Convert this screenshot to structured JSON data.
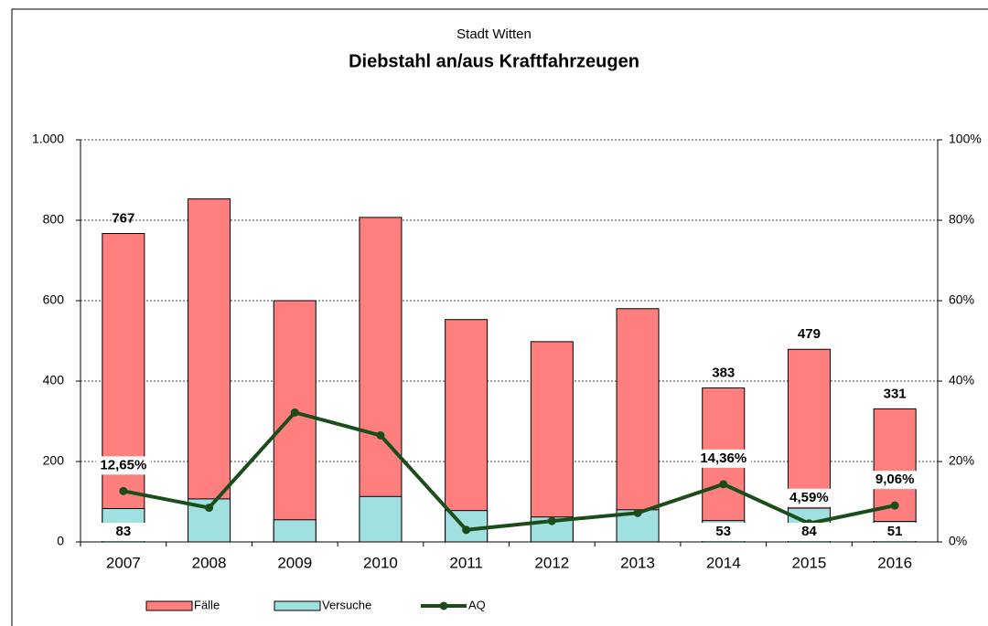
{
  "chart_data": {
    "type": "bar",
    "subtitle": "Stadt Witten",
    "title": "Diebstahl an/aus Kraftfahrzeugen",
    "categories": [
      "2007",
      "2008",
      "2009",
      "2010",
      "2011",
      "2012",
      "2013",
      "2014",
      "2015",
      "2016"
    ],
    "series": [
      {
        "name": "Fälle",
        "color": "#ff7f7f",
        "values": [
          767,
          853,
          600,
          807,
          553,
          498,
          580,
          383,
          479,
          331
        ],
        "value_labels": [
          "767",
          null,
          null,
          null,
          null,
          null,
          null,
          "383",
          "479",
          "331"
        ]
      },
      {
        "name": "Versuche",
        "color": "#a0e0e0",
        "values": [
          83,
          107,
          55,
          113,
          78,
          62,
          80,
          53,
          84,
          51
        ],
        "value_labels": [
          "83",
          null,
          null,
          null,
          null,
          null,
          null,
          "53",
          "84",
          "51"
        ]
      },
      {
        "name": "AQ",
        "type": "line",
        "axis": "y2",
        "color": "#1b4d1b",
        "values": [
          12.65,
          8.5,
          32.2,
          26.5,
          3,
          5.2,
          7.2,
          14.36,
          4.59,
          9.06
        ],
        "value_labels": [
          "12,65%",
          null,
          null,
          null,
          null,
          null,
          null,
          "14,36%",
          "4,59%",
          "9,06%"
        ]
      }
    ],
    "ylim": [
      0,
      1000
    ],
    "yticks": [
      0,
      200,
      400,
      600,
      800,
      {
        "value": 1000,
        "label": "1.000"
      }
    ],
    "y2lim": [
      0,
      100
    ],
    "y2ticks": [
      {
        "value": 0,
        "label": "0%"
      },
      {
        "value": 20,
        "label": "20%"
      },
      {
        "value": 40,
        "label": "40%"
      },
      {
        "value": 60,
        "label": "60%"
      },
      {
        "value": 80,
        "label": "80%"
      },
      {
        "value": 100,
        "label": "100%"
      }
    ],
    "grid": true
  }
}
